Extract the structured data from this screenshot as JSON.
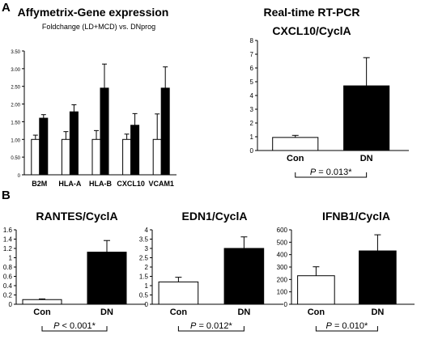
{
  "panel_labels": [
    "A",
    "B"
  ],
  "chart_data": [
    {
      "id": "affy",
      "type": "bar",
      "title": "Affymetrix-Gene expression",
      "subtitle": "Foldchange  (LD+MCD) vs. DNprog",
      "categories": [
        "B2M",
        "HLA-A",
        "HLA-B",
        "CXCL10",
        "VCAM1"
      ],
      "series": [
        {
          "values": [
            1.0,
            1.0,
            1.0,
            1.0,
            1.0
          ],
          "errors": [
            0.12,
            0.22,
            0.25,
            0.15,
            0.72
          ],
          "color": "#ffffff"
        },
        {
          "values": [
            1.6,
            1.78,
            2.45,
            1.4,
            2.45
          ],
          "errors": [
            0.1,
            0.2,
            0.68,
            0.33,
            0.6
          ],
          "color": "#000000"
        }
      ],
      "yticks": [
        "0",
        "0.50",
        "1.00",
        "1.50",
        "2.00",
        "2.50",
        "3.00",
        "3.50"
      ],
      "ylim": [
        0,
        3.5
      ],
      "grid": false
    },
    {
      "id": "cxcl10",
      "type": "bar",
      "title": "Real-time RT-PCR",
      "subtitle": "CXCL10/CyclA",
      "categories": [
        "Con",
        "DN"
      ],
      "values": [
        0.95,
        4.7
      ],
      "errors": [
        0.15,
        2.05
      ],
      "colors": [
        "#ffffff",
        "#000000"
      ],
      "yticks": [
        "0",
        "1",
        "2",
        "3",
        "4",
        "5",
        "6",
        "7",
        "8"
      ],
      "ylim": [
        0,
        8
      ],
      "pvalue": {
        "prefix": "P",
        "text": " = 0.013*"
      }
    },
    {
      "id": "rantes",
      "type": "bar",
      "title": "RANTES/CyclA",
      "categories": [
        "Con",
        "DN"
      ],
      "values": [
        0.1,
        1.12
      ],
      "errors": [
        0.015,
        0.25
      ],
      "colors": [
        "#ffffff",
        "#000000"
      ],
      "yticks": [
        "0",
        "0.2",
        "0.4",
        "0.6",
        "0.8",
        "1",
        "1.2",
        "1.4",
        "1.6"
      ],
      "ylim": [
        0,
        1.6
      ],
      "pvalue": {
        "prefix": "P",
        "text": " < 0.001*"
      }
    },
    {
      "id": "edn1",
      "type": "bar",
      "title": "EDN1/CyclA",
      "categories": [
        "Con",
        "DN"
      ],
      "values": [
        1.2,
        3.0
      ],
      "errors": [
        0.25,
        0.62
      ],
      "colors": [
        "#ffffff",
        "#000000"
      ],
      "yticks": [
        "0",
        "0.5",
        "1",
        "1.5",
        "2",
        "2.5",
        "3",
        "3.5",
        "4"
      ],
      "ylim": [
        0,
        4
      ],
      "pvalue": {
        "prefix": "P",
        "text": " = 0.012*"
      }
    },
    {
      "id": "ifnb1",
      "type": "bar",
      "title": "IFNB1/CyclA",
      "categories": [
        "Con",
        "DN"
      ],
      "values": [
        230,
        430
      ],
      "errors": [
        72,
        130
      ],
      "colors": [
        "#ffffff",
        "#000000"
      ],
      "yticks": [
        "0",
        "100",
        "200",
        "300",
        "400",
        "500",
        "600"
      ],
      "ylim": [
        0,
        600
      ],
      "pvalue": {
        "prefix": "P",
        "text": " = 0.010*"
      }
    }
  ]
}
